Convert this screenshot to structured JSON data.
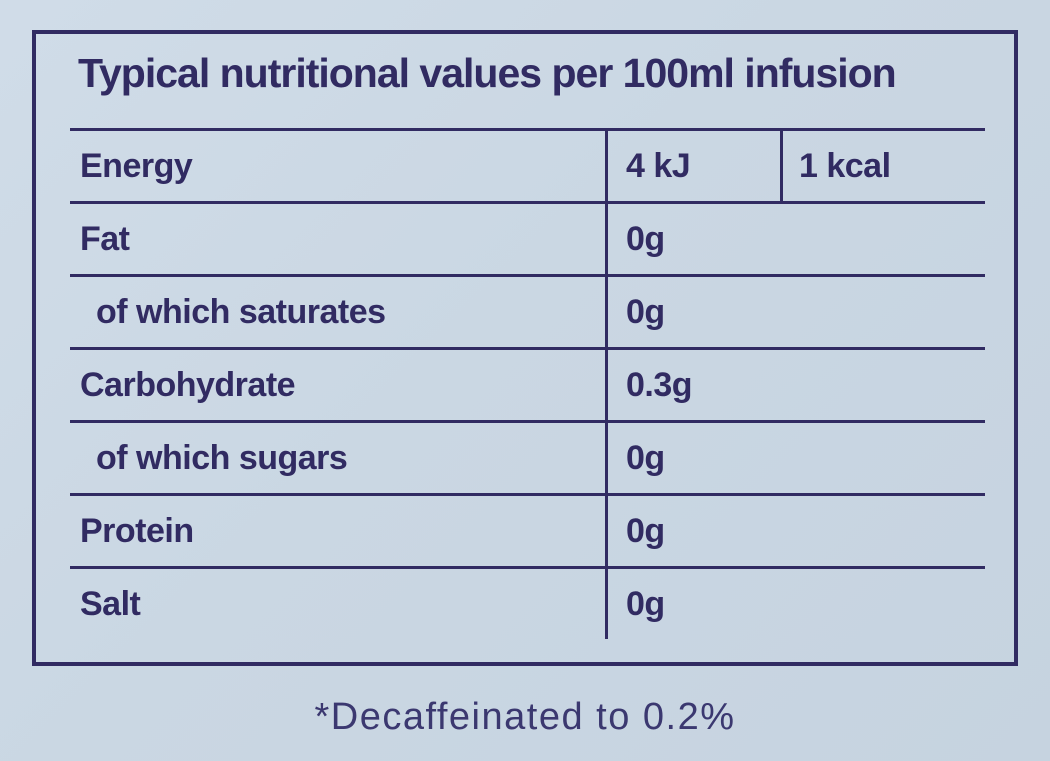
{
  "label": {
    "title": "Typical nutritional values per 100ml infusion",
    "rows": [
      {
        "name": "Energy",
        "value": "4 kJ",
        "value2": "1 kcal",
        "indent": false
      },
      {
        "name": "Fat",
        "value": "0g",
        "indent": false
      },
      {
        "name": "of which saturates",
        "value": "0g",
        "indent": true
      },
      {
        "name": "Carbohydrate",
        "value": "0.3g",
        "indent": false
      },
      {
        "name": "of which sugars",
        "value": "0g",
        "indent": true
      },
      {
        "name": "Protein",
        "value": "0g",
        "indent": false
      },
      {
        "name": "Salt",
        "value": "0g",
        "indent": false
      }
    ],
    "footnote": "*Decaffeinated to 0.2%",
    "colors": {
      "background": "#ccd9e5",
      "ink": "#312b62"
    }
  }
}
